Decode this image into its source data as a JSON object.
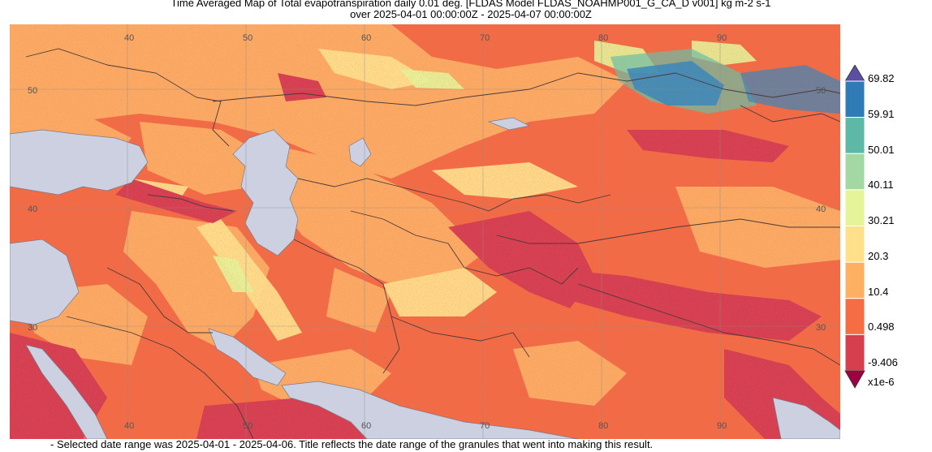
{
  "title_line1": "Time Averaged Map of Total evapotranspiration daily 0.01 deg. [FLDAS Model FLDAS_NOAHMP001_G_CA_D v001] kg m-2 s-1",
  "title_line2": "over 2025-04-01 00:00:00Z - 2025-04-07 00:00:00Z",
  "footer": "- Selected date range was 2025-04-01 - 2025-04-06. Title reflects the date range of the granules that went into making this result.",
  "colorbar": {
    "labels": [
      "69.82",
      "59.91",
      "50.01",
      "40.11",
      "30.21",
      "20.3",
      "10.4",
      "0.498",
      "-9.406"
    ],
    "scale_note": "x1e-6",
    "colors": [
      "#2e7bb5",
      "#5db8a6",
      "#a3d8a4",
      "#e6f499",
      "#fee08a",
      "#fdb062",
      "#f46d43",
      "#d63f4d"
    ],
    "over_color": "#5a4fa2",
    "under_color": "#9e0142"
  },
  "map": {
    "top_lon_labels": [
      "40",
      "50",
      "60",
      "70",
      "80",
      "90"
    ],
    "bottom_lon_labels": [
      "40",
      "50",
      "60",
      "70",
      "80",
      "90"
    ],
    "left_lat_labels": [
      "50",
      "40",
      "30"
    ],
    "right_lat_labels": [
      "50",
      "40",
      "30"
    ],
    "water_color": "#cdd0e0",
    "land_colors": [
      "#f46d43",
      "#fdae61",
      "#fee08b",
      "#e6f598",
      "#d53e4f",
      "#3288bd",
      "#66c2a5"
    ]
  }
}
